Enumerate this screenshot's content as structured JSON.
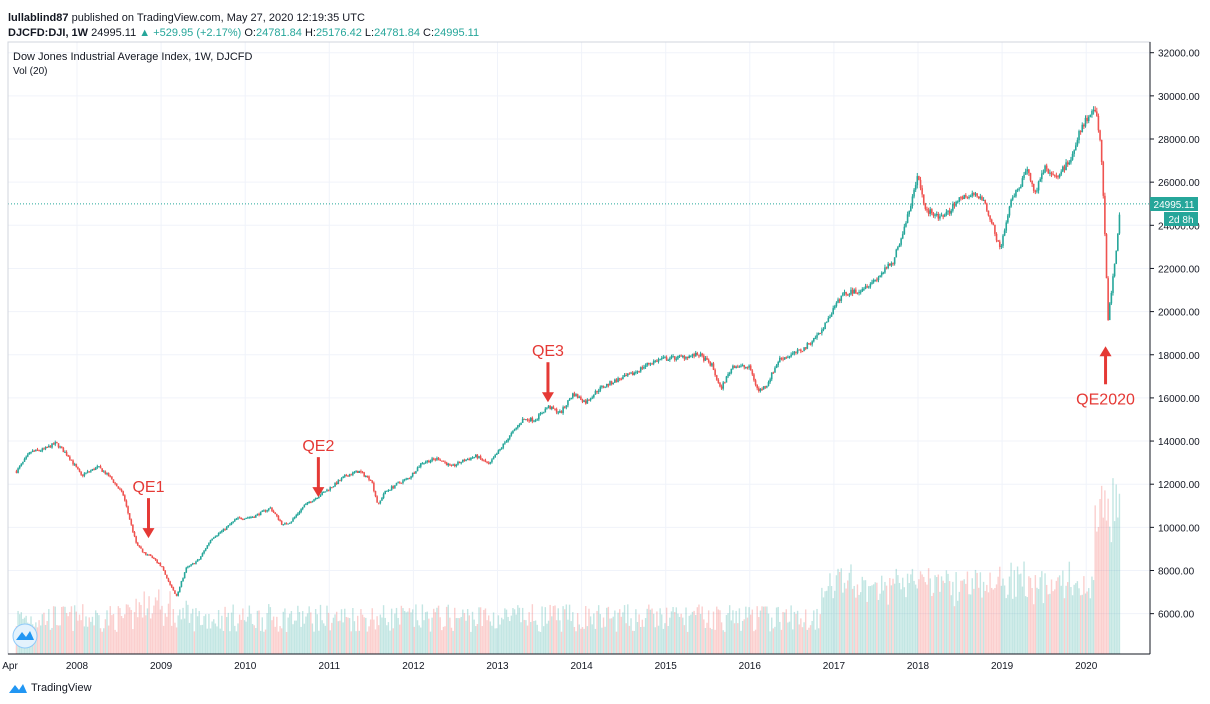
{
  "header": {
    "author": "lullablind87",
    "published_text": "published on TradingView.com, May 27, 2020 12:19:35 UTC",
    "symbol": "DJCFD:DJI, 1W",
    "last": "24995.11",
    "change_arrow": "▲",
    "change": "+529.95 (+2.17%)",
    "o_label": "O:",
    "o_value": "24781.84",
    "h_label": "H:",
    "h_value": "25176.42",
    "l_label": "L:",
    "l_value": "24781.84",
    "c_label": "C:",
    "c_value": "24995.11"
  },
  "legend": {
    "title": "Dow Jones Industrial Average Index, 1W, DJCFD",
    "volume": "Vol (20)"
  },
  "price_label": {
    "value": "24995.11",
    "countdown": "2d 8h"
  },
  "footer": {
    "brand": "TradingView"
  },
  "colors": {
    "up": "#26a69a",
    "down": "#ef5350",
    "annotation": "#e53935",
    "grid": "#f0f3fa",
    "axis": "#787b86"
  },
  "chart_data": {
    "type": "line",
    "title": "Dow Jones Industrial Average Index, 1W, DJCFD",
    "y_ticks": [
      "6000.00",
      "8000.00",
      "10000.00",
      "12000.00",
      "14000.00",
      "16000.00",
      "18000.00",
      "20000.00",
      "22000.00",
      "24000.00",
      "26000.00",
      "28000.00",
      "30000.00",
      "32000.00"
    ],
    "x_ticks": [
      "Apr",
      "2008",
      "2009",
      "2010",
      "2011",
      "2012",
      "2013",
      "2014",
      "2015",
      "2016",
      "2017",
      "2018",
      "2019",
      "2020"
    ],
    "ylim": [
      4000,
      32500
    ],
    "x": [
      2007.28,
      2007.45,
      2007.6,
      2007.75,
      2007.9,
      2008.05,
      2008.25,
      2008.4,
      2008.55,
      2008.7,
      2008.8,
      2008.9,
      2009.0,
      2009.1,
      2009.18,
      2009.3,
      2009.45,
      2009.6,
      2009.75,
      2009.9,
      2010.1,
      2010.3,
      2010.45,
      2010.55,
      2010.7,
      2010.85,
      2011.0,
      2011.2,
      2011.35,
      2011.5,
      2011.58,
      2011.65,
      2011.8,
      2011.95,
      2012.1,
      2012.3,
      2012.45,
      2012.6,
      2012.75,
      2012.9,
      2013.1,
      2013.3,
      2013.45,
      2013.6,
      2013.75,
      2013.9,
      2014.05,
      2014.2,
      2014.4,
      2014.6,
      2014.8,
      2014.95,
      2015.2,
      2015.4,
      2015.55,
      2015.65,
      2015.8,
      2016.0,
      2016.1,
      2016.2,
      2016.35,
      2016.5,
      2016.65,
      2016.85,
      2016.95,
      2017.1,
      2017.3,
      2017.5,
      2017.7,
      2017.85,
      2018.0,
      2018.08,
      2018.15,
      2018.3,
      2018.5,
      2018.75,
      2018.85,
      2018.98,
      2019.1,
      2019.3,
      2019.4,
      2019.5,
      2019.65,
      2019.8,
      2019.95,
      2020.05,
      2020.12,
      2020.18,
      2020.22,
      2020.26,
      2020.32,
      2020.38,
      2020.41
    ],
    "values": [
      12600,
      13500,
      13600,
      13900,
      13300,
      12400,
      12800,
      12300,
      11500,
      9300,
      8800,
      8600,
      8200,
      7400,
      6800,
      8100,
      8500,
      9500,
      9900,
      10400,
      10500,
      10900,
      10100,
      10300,
      11000,
      11400,
      11800,
      12400,
      12600,
      12200,
      11000,
      11600,
      12000,
      12300,
      13000,
      13200,
      12800,
      13100,
      13300,
      12900,
      14000,
      15000,
      15000,
      15600,
      15300,
      16200,
      15800,
      16400,
      16800,
      17100,
      17600,
      17800,
      17900,
      18000,
      17500,
      16400,
      17500,
      17400,
      16300,
      16600,
      17800,
      18000,
      18300,
      19100,
      19800,
      20800,
      21000,
      21500,
      22300,
      24000,
      26300,
      24800,
      24600,
      24300,
      25300,
      25400,
      24400,
      22900,
      25000,
      26500,
      25500,
      26700,
      26200,
      27000,
      28600,
      29100,
      29400,
      27400,
      23700,
      19600,
      21600,
      23800,
      24995
    ],
    "series": [
      {
        "name": "Vol (20)",
        "type": "bar"
      }
    ],
    "annotations": [
      {
        "label": "QE1",
        "x": 2008.85,
        "y": 9500,
        "direction": "down"
      },
      {
        "label": "QE2",
        "x": 2010.87,
        "y": 11400,
        "direction": "down"
      },
      {
        "label": "QE3",
        "x": 2013.6,
        "y": 15800,
        "direction": "down"
      },
      {
        "label": "QE2020",
        "x": 2020.23,
        "y": 18300,
        "direction": "up"
      }
    ],
    "last_price": 24995.11,
    "grid": true
  }
}
